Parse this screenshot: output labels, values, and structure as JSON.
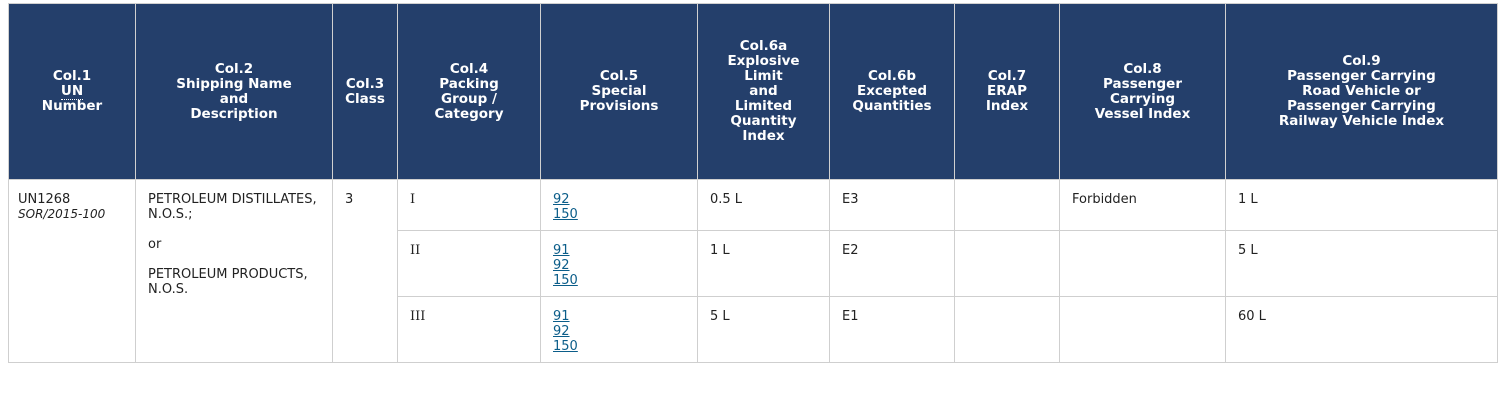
{
  "table": {
    "header": [
      [
        "Col.1",
        "UN",
        "Number"
      ],
      [
        "Col.2",
        "Shipping Name",
        "and",
        "Description"
      ],
      [
        "Col.3",
        "Class"
      ],
      [
        "Col.4",
        "Packing",
        "Group /",
        "Category"
      ],
      [
        "Col.5",
        "Special",
        "Provisions"
      ],
      [
        "Col.6a",
        "Explosive",
        "Limit",
        "and",
        "Limited",
        "Quantity",
        "Index"
      ],
      [
        "Col.6b",
        "Excepted",
        "Quantities"
      ],
      [
        "Col.7",
        "ERAP",
        "Index"
      ],
      [
        "Col.8",
        "Passenger",
        "Carrying",
        "Vessel Index"
      ],
      [
        "Col.9",
        "Passenger Carrying",
        "Road Vehicle or",
        "Passenger Carrying",
        "Railway Vehicle Index"
      ]
    ],
    "un_number": "UN1268",
    "reference": "SOR/2015-100",
    "shipping_name": [
      "PETROLEUM DISTILLATES, N.O.S.;",
      "or",
      "PETROLEUM PRODUCTS, N.O.S."
    ],
    "class": "3",
    "rows": [
      {
        "packing_group": "I",
        "special_provisions": [
          "92",
          "150"
        ],
        "explosive_limit": "0.5 L",
        "excepted_quantities": "E3",
        "vessel_index": "Forbidden",
        "road_rail_index": "1 L"
      },
      {
        "packing_group": "II",
        "special_provisions": [
          "91",
          "92",
          "150"
        ],
        "explosive_limit": "1 L",
        "excepted_quantities": "E2",
        "road_rail_index": "5 L"
      },
      {
        "packing_group": "III",
        "special_provisions": [
          "91",
          "92",
          "150"
        ],
        "explosive_limit": "5 L",
        "excepted_quantities": "E1",
        "road_rail_index": "60 L"
      }
    ]
  }
}
